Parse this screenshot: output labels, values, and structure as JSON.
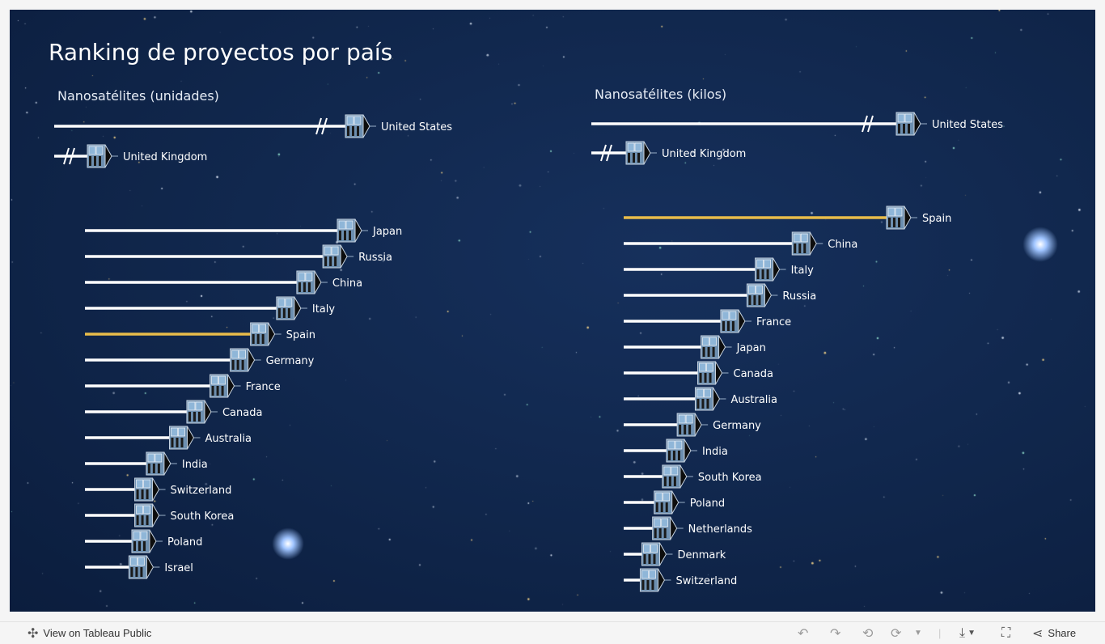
{
  "title": "Ranking de proyectos por país",
  "colors": {
    "bar": "#ffffff",
    "highlight": "#e8bc4a",
    "background": "#10264b"
  },
  "chart_data": [
    {
      "type": "bar",
      "orientation": "horizontal",
      "title": "Nanosatélites (unidades)",
      "highlight": "Spain",
      "outliers": [
        "United States",
        "United Kingdom"
      ],
      "categories": [
        "Japan",
        "Russia",
        "China",
        "Italy",
        "Spain",
        "Germany",
        "France",
        "Canada",
        "Australia",
        "India",
        "Switzerland",
        "South Korea",
        "Poland",
        "Israel"
      ],
      "values": [
        90,
        85,
        76,
        69,
        60,
        53,
        46,
        38,
        32,
        24,
        20,
        20,
        19,
        18
      ]
    },
    {
      "type": "bar",
      "orientation": "horizontal",
      "title": "Nanosatélites (kilos)",
      "highlight": "Spain",
      "outliers": [
        "United States",
        "United Kingdom"
      ],
      "categories": [
        "Spain",
        "China",
        "Italy",
        "Russia",
        "France",
        "Japan",
        "Canada",
        "Australia",
        "Germany",
        "India",
        "South Korea",
        "Poland",
        "Netherlands",
        "Denmark",
        "Switzerland"
      ],
      "values": [
        330,
        215,
        170,
        160,
        128,
        104,
        100,
        97,
        75,
        62,
        57,
        47,
        45,
        32,
        30
      ]
    }
  ],
  "footer": {
    "view_label": "View on Tableau Public",
    "share_label": "Share"
  }
}
